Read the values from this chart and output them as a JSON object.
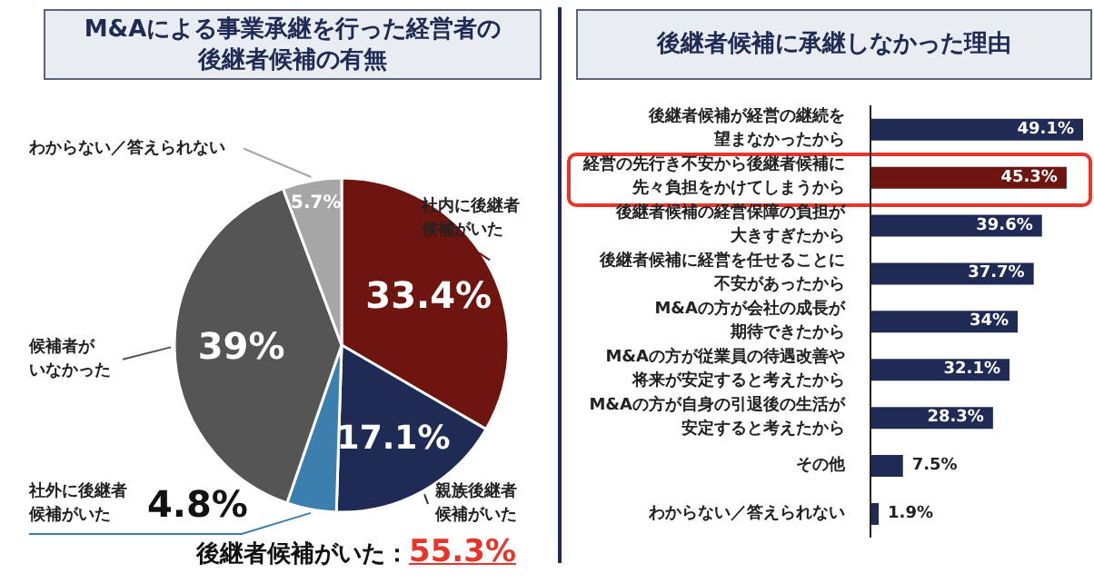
{
  "chart_data": [
    {
      "type": "pie",
      "title": "M&Aによる事業承継を行った経営者の後継者候補の有無",
      "categories": [
        "社内に後継者候補がいた",
        "親族後継者候補がいた",
        "社外に後継者候補がいた",
        "候補者がいなかった",
        "わからない／答えられない"
      ],
      "values": [
        33.4,
        17.1,
        4.8,
        39,
        5.7
      ],
      "colors": [
        "#6e1510",
        "#1f2a55",
        "#3a7fad",
        "#555555",
        "#a6a6a6"
      ],
      "value_labels": [
        "33.4%",
        "17.1%",
        "4.8%",
        "39%",
        "5.7%"
      ],
      "annotations": [
        "後継者候補がいた：55.3%"
      ]
    },
    {
      "type": "bar",
      "orientation": "horizontal",
      "title": "後継者候補に承継しなかった理由",
      "categories": [
        "後継者候補が経営の継続を望まなかったから",
        "経営の先行き不安から後継者候補に先々負担をかけてしまうから",
        "後継者候補の経営保障の負担が大きすぎたから",
        "後継者候補に経営を任せることに不安があったから",
        "M&Aの方が会社の成長が期待できたから",
        "M&Aの方が従業員の待遇改善や将来が安定すると考えたから",
        "M&Aの方が自身の引退後の生活が安定すると考えたから",
        "その他",
        "わからない／答えられない"
      ],
      "values": [
        49.1,
        45.3,
        39.6,
        37.7,
        34,
        32.1,
        28.3,
        7.5,
        1.9
      ],
      "colors": [
        "#1f2a55",
        "#6e1510",
        "#1f2a55",
        "#1f2a55",
        "#1f2a55",
        "#1f2a55",
        "#1f2a55",
        "#1f2a55",
        "#1f2a55"
      ],
      "value_labels": [
        "49.1%",
        "45.3%",
        "39.6%",
        "37.7%",
        "34%",
        "32.1%",
        "28.3%",
        "7.5%",
        "1.9%"
      ]
    }
  ]
}
